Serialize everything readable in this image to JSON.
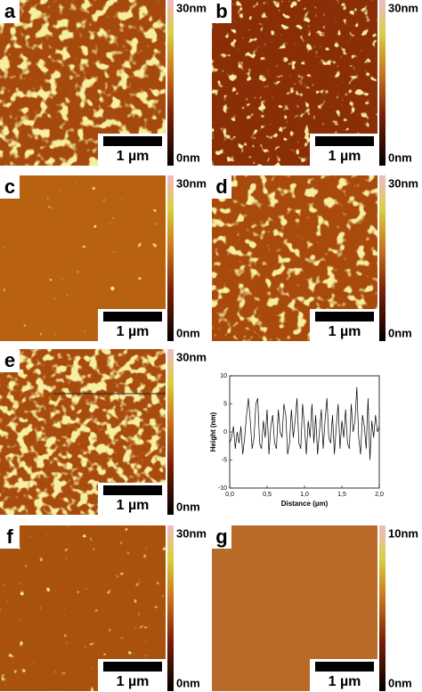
{
  "panels": [
    {
      "label": "a",
      "scale_bar": "1 µm",
      "colorbar_max": "30nm",
      "colorbar_min": "0nm"
    },
    {
      "label": "b",
      "scale_bar": "1 µm",
      "colorbar_max": "30nm",
      "colorbar_min": "0nm"
    },
    {
      "label": "c",
      "scale_bar": "1 µm",
      "colorbar_max": "30nm",
      "colorbar_min": "0nm"
    },
    {
      "label": "d",
      "scale_bar": "1 µm",
      "colorbar_max": "30nm",
      "colorbar_min": "0nm"
    },
    {
      "label": "e",
      "scale_bar": "1 µm",
      "colorbar_max": "30nm",
      "colorbar_min": "0nm"
    },
    {
      "label": "f",
      "scale_bar": "1 µm",
      "colorbar_max": "30nm",
      "colorbar_min": "0nm"
    },
    {
      "label": "g",
      "scale_bar": "1 µm",
      "colorbar_max": "10nm",
      "colorbar_min": "0nm"
    }
  ],
  "chart_data": {
    "type": "line",
    "xlabel": "Distance (µm)",
    "ylabel": "Height (nm)",
    "color": "#000000",
    "x": [
      0,
      0.025,
      0.05,
      0.075,
      0.1,
      0.125,
      0.15,
      0.175,
      0.2,
      0.225,
      0.25,
      0.275,
      0.3,
      0.325,
      0.35,
      0.375,
      0.4,
      0.425,
      0.45,
      0.475,
      0.5,
      0.525,
      0.55,
      0.575,
      0.6,
      0.625,
      0.65,
      0.675,
      0.7,
      0.725,
      0.75,
      0.775,
      0.8,
      0.825,
      0.85,
      0.875,
      0.9,
      0.925,
      0.95,
      0.975,
      1,
      1.025,
      1.05,
      1.075,
      1.1,
      1.125,
      1.15,
      1.175,
      1.2,
      1.225,
      1.25,
      1.275,
      1.3,
      1.325,
      1.35,
      1.375,
      1.4,
      1.425,
      1.45,
      1.475,
      1.5,
      1.525,
      1.55,
      1.575,
      1.6,
      1.625,
      1.65,
      1.675,
      1.7,
      1.725,
      1.75,
      1.775,
      1.8,
      1.825,
      1.85,
      1.875,
      1.9,
      1.925,
      1.95,
      1.975,
      2
    ],
    "values": [
      -2,
      -1,
      1,
      -3,
      0,
      -2,
      1,
      -4,
      -1,
      3,
      6,
      2,
      -3,
      -1,
      5,
      6,
      -2,
      -3,
      2,
      -1,
      4,
      -4,
      1,
      3,
      -2,
      -3,
      4,
      0,
      -1,
      5,
      3,
      -4,
      -2,
      4,
      -1,
      2,
      6,
      -2,
      -3,
      5,
      1,
      -4,
      2,
      -1,
      5,
      -2,
      3,
      -4,
      0,
      4,
      -3,
      2,
      6,
      -1,
      -2,
      3,
      -4,
      1,
      5,
      -3,
      2,
      -1,
      4,
      -2,
      -3,
      5,
      0,
      2,
      8,
      -1,
      -4,
      3,
      1,
      -3,
      6,
      -5,
      2,
      -1,
      3,
      0,
      1
    ],
    "xlim": [
      0,
      2
    ],
    "ylim": [
      -10,
      10
    ],
    "xticks": [
      {
        "value": 0,
        "label": "0,0"
      },
      {
        "value": 0.5,
        "label": "0,5"
      },
      {
        "value": 1,
        "label": "1,0"
      },
      {
        "value": 1.5,
        "label": "1,5"
      },
      {
        "value": 2,
        "label": "2,0"
      }
    ],
    "yticks": [
      -10,
      -5,
      0,
      5,
      10
    ]
  }
}
